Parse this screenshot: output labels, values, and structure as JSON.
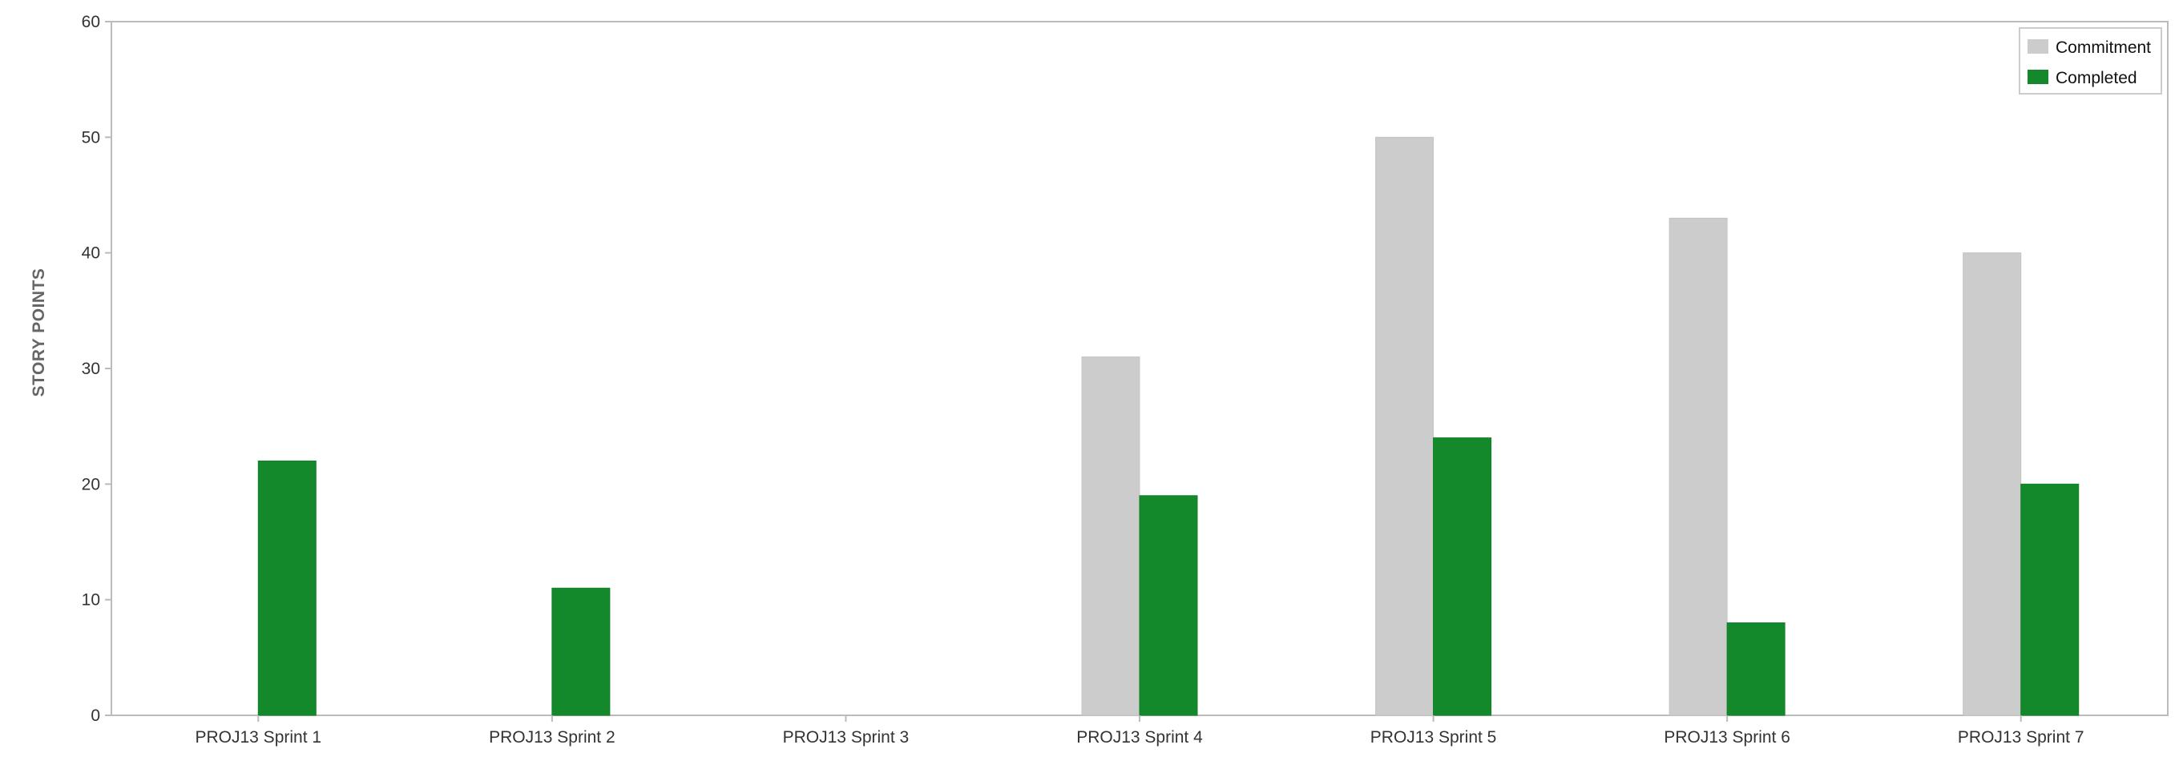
{
  "chart_data": {
    "type": "bar",
    "title": "",
    "xlabel": "",
    "ylabel": "STORY POINTS",
    "ylim": [
      0,
      60
    ],
    "yticks": [
      0,
      10,
      20,
      30,
      40,
      50,
      60
    ],
    "grid": false,
    "legend_position": "top-right",
    "categories": [
      "PROJ13 Sprint 1",
      "PROJ13 Sprint 2",
      "PROJ13 Sprint 3",
      "PROJ13 Sprint 4",
      "PROJ13 Sprint 5",
      "PROJ13 Sprint 6",
      "PROJ13 Sprint 7"
    ],
    "series": [
      {
        "name": "Commitment",
        "color": "#cccccc",
        "values": [
          0,
          0,
          0,
          31,
          50,
          43,
          40
        ]
      },
      {
        "name": "Completed",
        "color": "#14892c",
        "values": [
          22,
          11,
          0,
          19,
          24,
          8,
          20
        ]
      }
    ]
  }
}
